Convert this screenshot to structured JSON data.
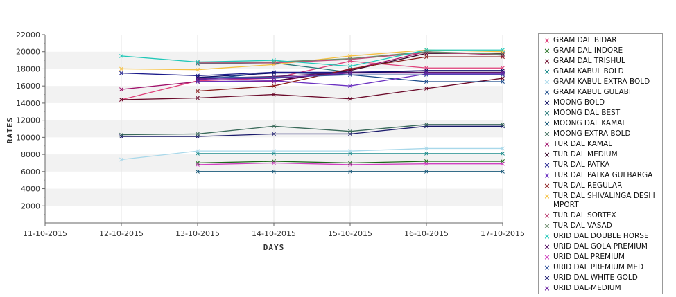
{
  "chart_data": {
    "type": "line",
    "title": "",
    "xlabel": "DAYS",
    "ylabel": "RATES",
    "ylim": [
      0,
      22000
    ],
    "yticks": [
      2000,
      4000,
      6000,
      8000,
      10000,
      12000,
      14000,
      16000,
      18000,
      20000,
      22000
    ],
    "categories": [
      "11-10-2015",
      "12-10-2015",
      "13-10-2015",
      "14-10-2015",
      "15-10-2015",
      "16-10-2015",
      "17-10-2015"
    ],
    "grid": "horizontal alternating bands",
    "legend_position": "right",
    "marker": "x",
    "series": [
      {
        "name": "GRAM DAL BIDAR",
        "color": "#e0407a",
        "values": [
          null,
          14400,
          16600,
          16900,
          18900,
          18100,
          18100
        ]
      },
      {
        "name": "GRAM DAL INDORE",
        "color": "#1a6b1a",
        "values": [
          null,
          null,
          7000,
          7200,
          7000,
          7200,
          7200
        ]
      },
      {
        "name": "GRAM DAL TRISHUL",
        "color": "#6b0a2a",
        "values": [
          null,
          14400,
          14600,
          15000,
          14500,
          15700,
          16900
        ]
      },
      {
        "name": "GRAM KABUL BOLD",
        "color": "#1a8a8a",
        "values": [
          null,
          null,
          8100,
          8100,
          8100,
          8100,
          8100
        ]
      },
      {
        "name": "GRAM KABUL EXTRA BOLD",
        "color": "#a8d8ea",
        "values": [
          null,
          7400,
          8400,
          8400,
          8400,
          8700,
          8700
        ]
      },
      {
        "name": "GRAM KABUL GULABI",
        "color": "#1a4a8a",
        "values": [
          null,
          null,
          16700,
          17600,
          17300,
          16500,
          16500
        ]
      },
      {
        "name": "MOONG BOLD",
        "color": "#1a1a6b",
        "values": [
          null,
          10100,
          10100,
          10400,
          10400,
          11300,
          11300
        ]
      },
      {
        "name": "MOONG DAL BEST",
        "color": "#2a7a7a",
        "values": [
          null,
          null,
          18600,
          18700,
          17600,
          17600,
          17600
        ]
      },
      {
        "name": "MOONG DAL KAMAL",
        "color": "#1a5a7a",
        "values": [
          null,
          null,
          6000,
          6000,
          6000,
          6000,
          6000
        ]
      },
      {
        "name": "MOONG EXTRA BOLD",
        "color": "#3a6a5a",
        "values": [
          null,
          10300,
          10400,
          11300,
          10700,
          11500,
          11500
        ]
      },
      {
        "name": "TUR DAL KAMAL",
        "color": "#a0106a",
        "values": [
          null,
          15600,
          16500,
          16500,
          17900,
          20000,
          19600
        ]
      },
      {
        "name": "TUR DAL MEDIUM",
        "color": "#3a0a2a",
        "values": [
          null,
          null,
          16500,
          16600,
          17800,
          19800,
          19800
        ]
      },
      {
        "name": "TUR DAL PATKA",
        "color": "#1a1a8a",
        "values": [
          null,
          17500,
          17200,
          17600,
          17600,
          17800,
          17800
        ]
      },
      {
        "name": "TUR DAL PATKA GULBARGA",
        "color": "#6a30c0",
        "values": [
          null,
          null,
          16500,
          16600,
          16000,
          17400,
          17400
        ]
      },
      {
        "name": "TUR DAL REGULAR",
        "color": "#8a1a1a",
        "values": [
          null,
          null,
          15400,
          16000,
          18000,
          19400,
          19400
        ]
      },
      {
        "name": "TUR DAL SHIVALINGA DESI IMPORT",
        "color": "#f5c040",
        "values": [
          null,
          18000,
          17900,
          18500,
          19500,
          20200,
          20000
        ]
      },
      {
        "name": "TUR DAL SORTEX",
        "color": "#c04a7a",
        "values": [
          null,
          null,
          18700,
          18700,
          19100,
          19900,
          19700
        ]
      },
      {
        "name": "TUR DAL VASAD",
        "color": "#6a8a6a",
        "values": [
          null,
          null,
          18800,
          18800,
          19200,
          20000,
          19700
        ]
      },
      {
        "name": "URID DAL DOUBLE HORSE",
        "color": "#20c8b8",
        "values": [
          null,
          19500,
          18800,
          19000,
          18300,
          20200,
          20200
        ]
      },
      {
        "name": "URID DAL GOLA PREMIUM",
        "color": "#5a1a6a",
        "values": [
          null,
          null,
          16900,
          17100,
          17600,
          17600,
          17600
        ]
      },
      {
        "name": "URID DAL PREMIUM",
        "color": "#d040c0",
        "values": [
          null,
          null,
          6800,
          7000,
          6800,
          6900,
          6900
        ]
      },
      {
        "name": "URID DAL PREMIUM MED",
        "color": "#3a5aa0",
        "values": [
          null,
          null,
          17000,
          17000,
          17300,
          17300,
          17300
        ]
      },
      {
        "name": "URID DAL WHITE GOLD",
        "color": "#10106a",
        "values": [
          null,
          null,
          17000,
          17500,
          17500,
          17800,
          17800
        ]
      },
      {
        "name": "URID DAL-MEDIUM",
        "color": "#6a20a0",
        "values": [
          null,
          null,
          16800,
          16900,
          17500,
          17500,
          17500
        ]
      }
    ]
  }
}
